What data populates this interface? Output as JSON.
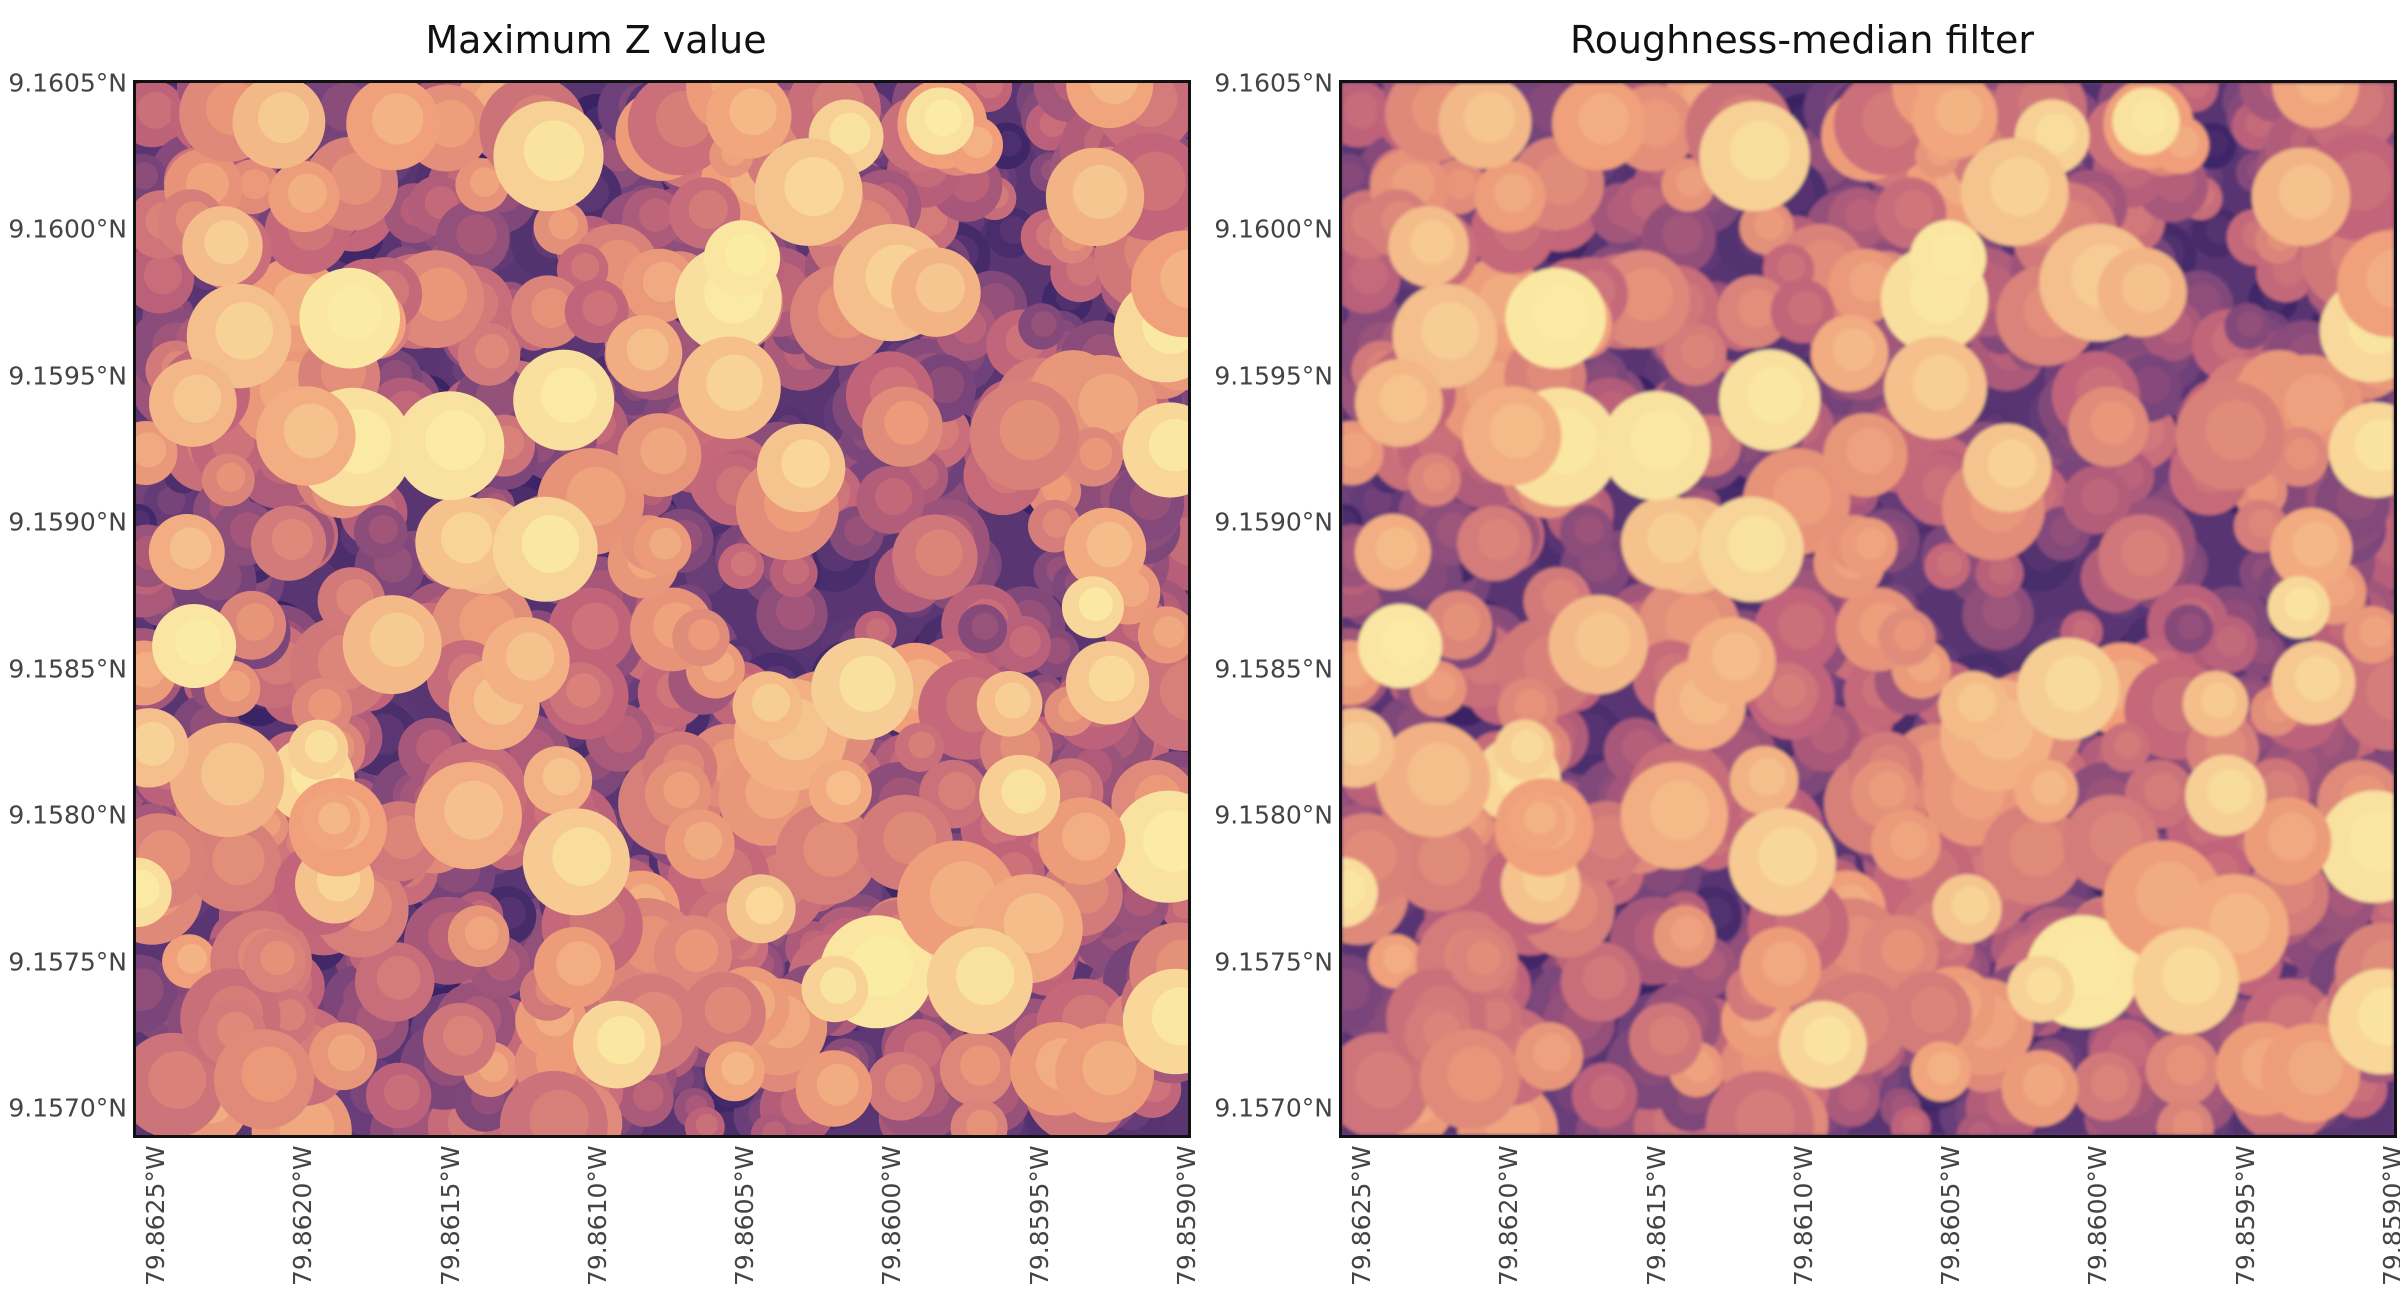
{
  "panels": [
    {
      "title": "Maximum Z value",
      "y_labels": [
        "9.1605°N",
        "9.1600°N",
        "9.1595°N",
        "9.1590°N",
        "9.1585°N",
        "9.1580°N",
        "9.1575°N",
        "9.1570°N"
      ],
      "x_labels": [
        "79.8625°W",
        "79.8620°W",
        "79.8615°W",
        "79.8610°W",
        "79.8605°W",
        "79.8600°W",
        "79.8595°W",
        "79.8590°W"
      ]
    },
    {
      "title": "Roughness-median filter",
      "y_labels": [
        "9.1605°N",
        "9.1600°N",
        "9.1595°N",
        "9.1590°N",
        "9.1585°N",
        "9.1580°N",
        "9.1575°N",
        "9.1570°N"
      ],
      "x_labels": [
        "79.8625°W",
        "79.8620°W",
        "79.8615°W",
        "79.8610°W",
        "79.8605°W",
        "79.8600°W",
        "79.8595°W",
        "79.8590°W"
      ]
    }
  ],
  "colormap": {
    "low": "#2a1b5e",
    "mid_low": "#6b3f7a",
    "mid": "#c0637a",
    "mid_high": "#f0a07a",
    "high": "#fbeda6"
  }
}
